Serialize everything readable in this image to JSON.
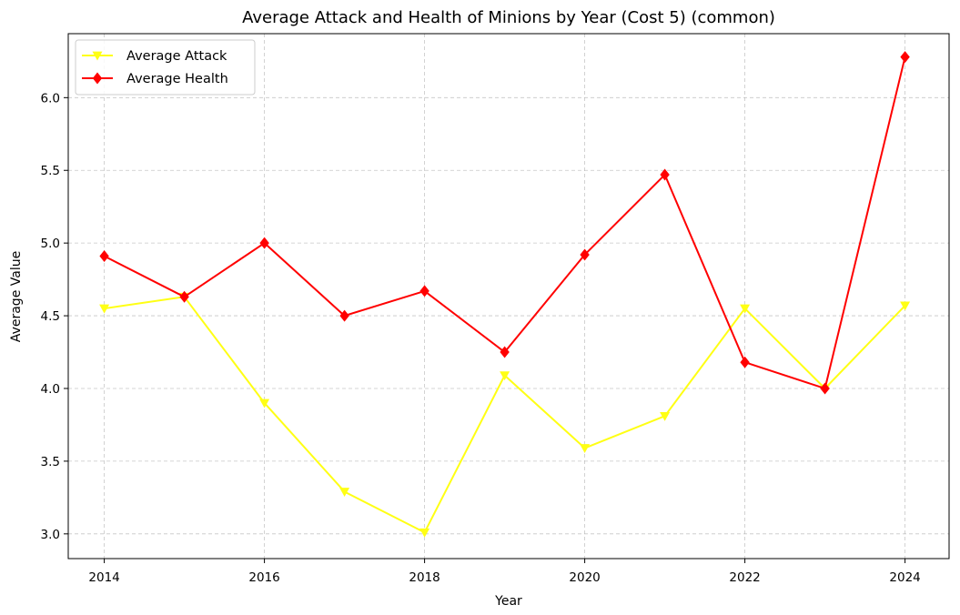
{
  "chart_data": {
    "type": "line",
    "title": "Average Attack and Health of Minions by Year (Cost 5) (common)",
    "xlabel": "Year",
    "ylabel": "Average Value",
    "x": [
      2014,
      2015,
      2016,
      2017,
      2018,
      2019,
      2020,
      2021,
      2022,
      2023,
      2024
    ],
    "xlim": [
      2013.55,
      2024.55
    ],
    "ylim": [
      2.83,
      6.44
    ],
    "x_ticks": [
      "2014",
      "2016",
      "2018",
      "2020",
      "2022",
      "2024"
    ],
    "y_ticks": [
      "3.0",
      "3.5",
      "4.0",
      "4.5",
      "5.0",
      "5.5",
      "6.0"
    ],
    "grid": true,
    "legend_position": "top-left",
    "series": [
      {
        "name": "Average Attack",
        "color": "#ffff14",
        "marker": "triangle-down",
        "values": [
          4.55,
          4.63,
          3.9,
          3.29,
          3.01,
          4.09,
          3.59,
          3.81,
          4.55,
          4.0,
          4.57
        ]
      },
      {
        "name": "Average Health",
        "color": "#ff0000",
        "marker": "diamond",
        "values": [
          4.91,
          4.63,
          5.0,
          4.5,
          4.67,
          4.25,
          4.92,
          5.47,
          4.18,
          4.0,
          6.28
        ]
      }
    ]
  }
}
